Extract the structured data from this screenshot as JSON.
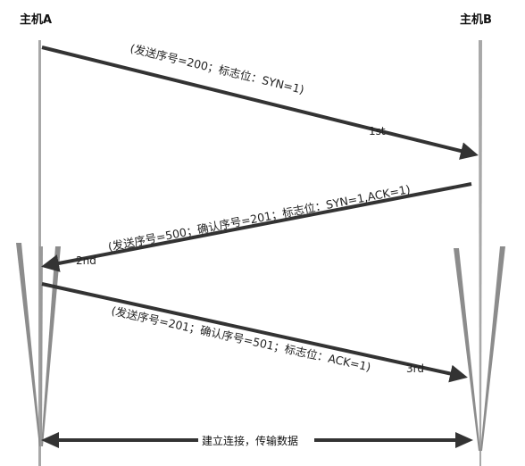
{
  "hosts": {
    "a": "主机A",
    "b": "主机B"
  },
  "messages": [
    {
      "step": "1st",
      "text": "(发送序号=200；标志位：SYN=1)"
    },
    {
      "step": "2nd",
      "text": "(发送序号=500；确认序号=201；标志位：SYN=1,ACK=1)"
    },
    {
      "step": "3rd",
      "text": "(发送序号=201；确认序号=501；标志位：ACK=1)"
    }
  ],
  "connection": {
    "label": "建立连接，传输数据"
  },
  "colors": {
    "arrow": "#333333",
    "timeline": "#9a9a9a",
    "funnel": "#8c8c8c"
  }
}
